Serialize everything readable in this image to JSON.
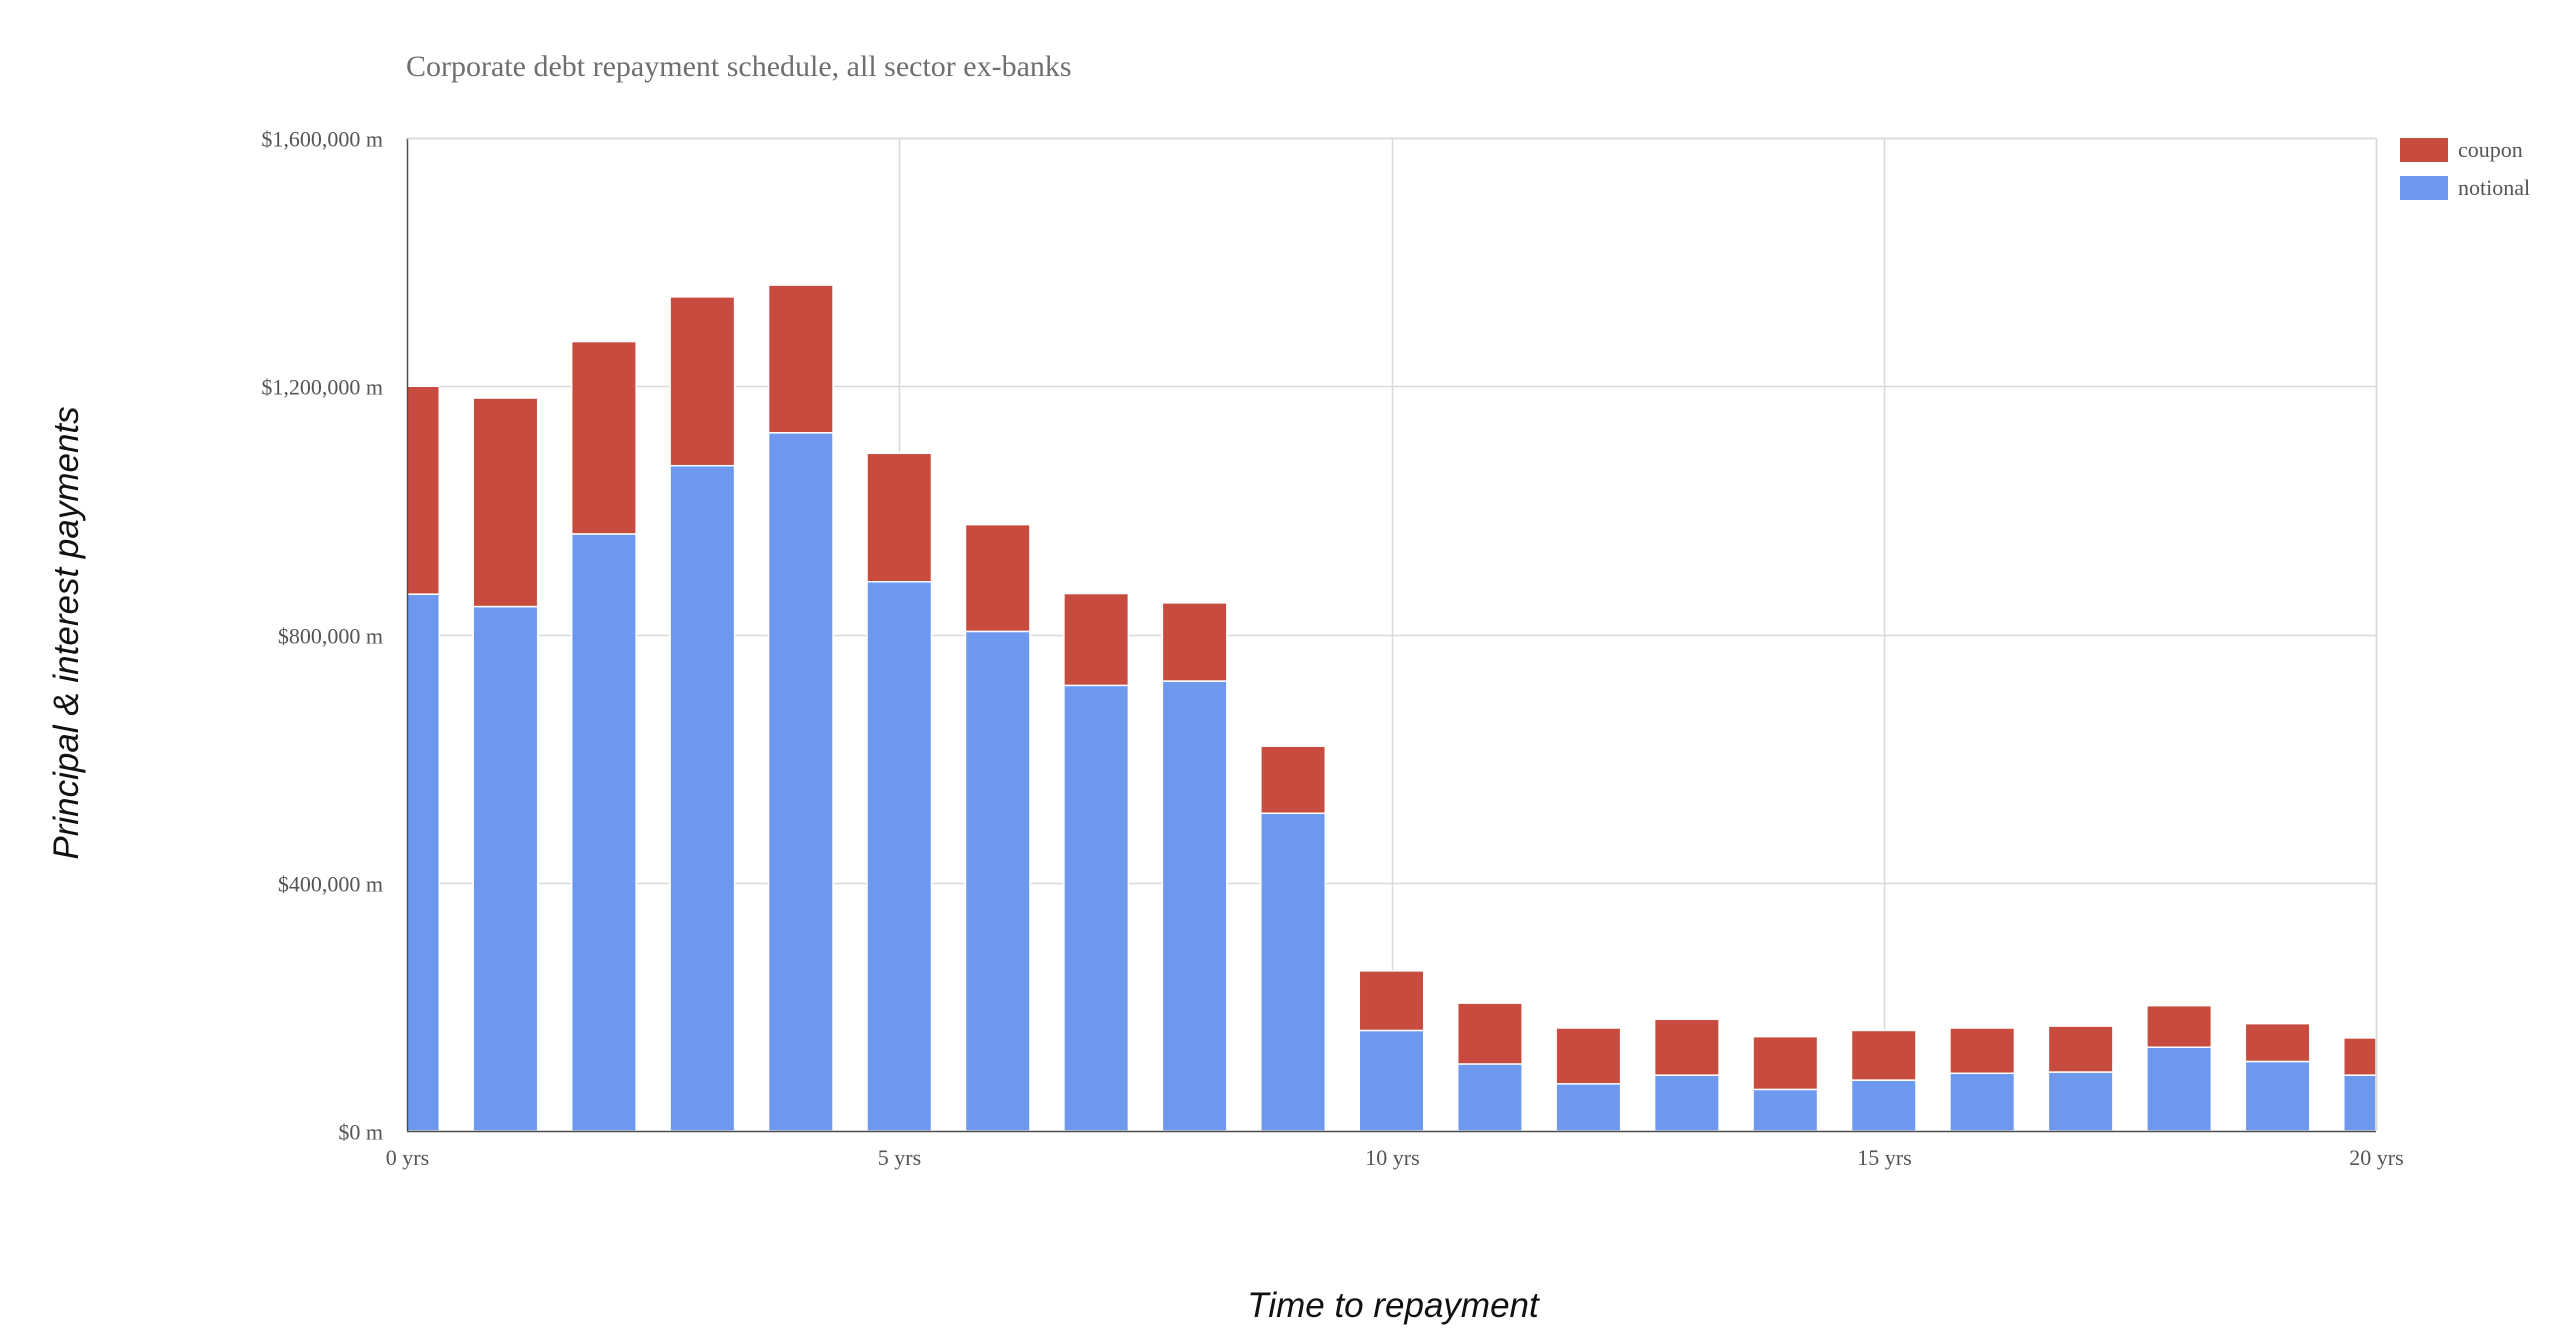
{
  "chart_data": {
    "type": "bar",
    "stacked": true,
    "title": "Corporate debt repayment schedule, all sector ex-banks",
    "xlabel": "Time to repayment",
    "ylabel": "Principal & interest payments",
    "ylim": [
      0,
      1600000
    ],
    "xlim": [
      0,
      20
    ],
    "y_ticks": [
      {
        "value": 0,
        "label": "$0 m"
      },
      {
        "value": 400000,
        "label": "$400,000 m"
      },
      {
        "value": 800000,
        "label": "$800,000 m"
      },
      {
        "value": 1200000,
        "label": "$1,200,000 m"
      },
      {
        "value": 1600000,
        "label": "$1,600,000 m"
      }
    ],
    "x_ticks": [
      {
        "value": 0,
        "label": "0 yrs"
      },
      {
        "value": 5,
        "label": "5 yrs"
      },
      {
        "value": 10,
        "label": "10 yrs"
      },
      {
        "value": 15,
        "label": "15 yrs"
      },
      {
        "value": 20,
        "label": "20 yrs"
      }
    ],
    "x": [
      0,
      1,
      2,
      3,
      4,
      5,
      6,
      7,
      8,
      9,
      10,
      11,
      12,
      13,
      14,
      15,
      16,
      17,
      18,
      19,
      20
    ],
    "series": [
      {
        "name": "notional",
        "color": "#6d98ee",
        "values": [
          865000,
          845000,
          962000,
          1072000,
          1125000,
          885000,
          805000,
          718000,
          725000,
          512000,
          162000,
          108000,
          76000,
          90000,
          67000,
          82000,
          93000,
          95000,
          135000,
          112000,
          90000
        ]
      },
      {
        "name": "coupon",
        "color": "#c74c3f",
        "values": [
          335000,
          336000,
          310000,
          272000,
          238000,
          207000,
          172000,
          148000,
          126000,
          108000,
          96000,
          98000,
          90000,
          90000,
          85000,
          80000,
          73000,
          74000,
          67000,
          61000,
          60000
        ]
      }
    ],
    "grid": true,
    "legend_position": "top-right"
  }
}
